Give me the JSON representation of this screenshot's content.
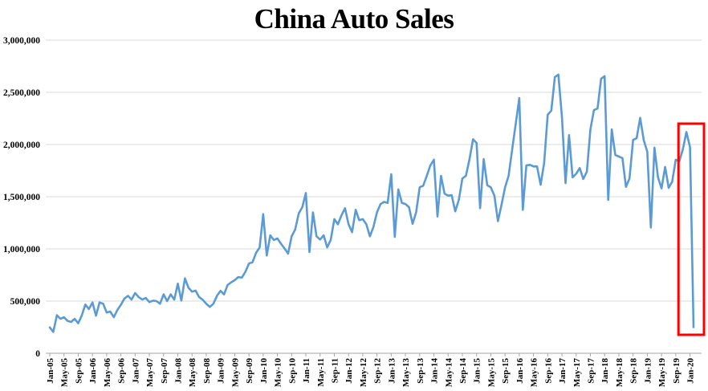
{
  "chart_data": {
    "type": "line",
    "title": "China Auto Sales",
    "frequency": "monthly",
    "months_start": "Jan-05",
    "series": [
      {
        "values": [
          248000,
          205000,
          365000,
          330000,
          345000,
          310000,
          300000,
          330000,
          287000,
          362000,
          467000,
          423000,
          487000,
          360000,
          487000,
          475000,
          390000,
          400000,
          345000,
          415000,
          465000,
          525000,
          550000,
          515000,
          577000,
          538000,
          515000,
          530000,
          490000,
          505000,
          500000,
          475000,
          565000,
          500000,
          565000,
          515000,
          667000,
          505000,
          718000,
          628000,
          590000,
          600000,
          538000,
          513000,
          474000,
          444000,
          475000,
          551000,
          598000,
          564000,
          654000,
          680000,
          700000,
          730000,
          725000,
          780000,
          860000,
          872000,
          962000,
          1013000,
          1333000,
          936000,
          1130000,
          1085000,
          1100000,
          1050000,
          1005000,
          955000,
          1120000,
          1185000,
          1340000,
          1400000,
          1535000,
          970000,
          1350000,
          1120000,
          1090000,
          1130000,
          1015000,
          1085000,
          1285000,
          1235000,
          1320000,
          1390000,
          1235000,
          1160000,
          1375000,
          1275000,
          1285000,
          1235000,
          1120000,
          1210000,
          1350000,
          1430000,
          1450000,
          1440000,
          1715000,
          1115000,
          1570000,
          1440000,
          1430000,
          1400000,
          1240000,
          1350000,
          1590000,
          1605000,
          1700000,
          1800000,
          1855000,
          1310000,
          1700000,
          1530000,
          1510000,
          1515000,
          1360000,
          1470000,
          1675000,
          1700000,
          1860000,
          2050000,
          2015000,
          1390000,
          1860000,
          1610000,
          1590000,
          1510000,
          1265000,
          1420000,
          1590000,
          1700000,
          1950000,
          2200000,
          2445000,
          1375000,
          1800000,
          1805000,
          1790000,
          1790000,
          1615000,
          1825000,
          2285000,
          2325000,
          2645000,
          2670000,
          2260000,
          1630000,
          2090000,
          1685000,
          1720000,
          1775000,
          1670000,
          1740000,
          2145000,
          2330000,
          2345000,
          2630000,
          2655000,
          1470000,
          2145000,
          1900000,
          1885000,
          1870000,
          1595000,
          1675000,
          2045000,
          2060000,
          2255000,
          2040000,
          1930000,
          1205000,
          1970000,
          1685000,
          1580000,
          1785000,
          1585000,
          1645000,
          1855000,
          1840000,
          1955000,
          2120000,
          1975000,
          250000
        ]
      }
    ],
    "x_tick_labels": [
      "Jan-05",
      "May-05",
      "Sep-05",
      "Jan-06",
      "May-06",
      "Sep-06",
      "Jan-07",
      "May-07",
      "Sep-07",
      "Jan-08",
      "May-08",
      "Sep-08",
      "Jan-09",
      "May-09",
      "Sep-09",
      "Jan-10",
      "May-10",
      "Sep-10",
      "Jan-11",
      "May-11",
      "Sep-11",
      "Jan-12",
      "May-12",
      "Sep-12",
      "Jan-13",
      "May-13",
      "Sep-13",
      "Jan-14",
      "May-14",
      "Sep-14",
      "Jan-15",
      "May-15",
      "Sep-15",
      "Jan-16",
      "May-16",
      "Sep-16",
      "Jan-17",
      "May-17",
      "Sep-17",
      "Jan-18",
      "May-18",
      "Sep-18",
      "Jan-19",
      "May-19",
      "Sep-19",
      "Jan-20"
    ],
    "x_tick_step_months": 4,
    "y_tick_labels": [
      "0",
      "500,000",
      "1,000,000",
      "1,500,000",
      "2,000,000",
      "2,500,000",
      "3,000,000"
    ],
    "y_tick_values": [
      0,
      500000,
      1000000,
      1500000,
      2000000,
      2500000,
      3000000
    ],
    "ylim": [
      0,
      3000000
    ],
    "xlabel": "",
    "ylabel": "",
    "grid": "horizontal",
    "legend": "none",
    "annotations": [
      {
        "type": "highlight-box",
        "from_month_index": 178,
        "to_month_index": 181,
        "color": "#FF0000"
      }
    ],
    "colors": {
      "line": "#5B9BD5",
      "highlight": "#FF0000",
      "gridline": "#D9D9D9",
      "axis": "#A6A6A6",
      "text": "#000000",
      "background": "#FFFFFF"
    }
  }
}
